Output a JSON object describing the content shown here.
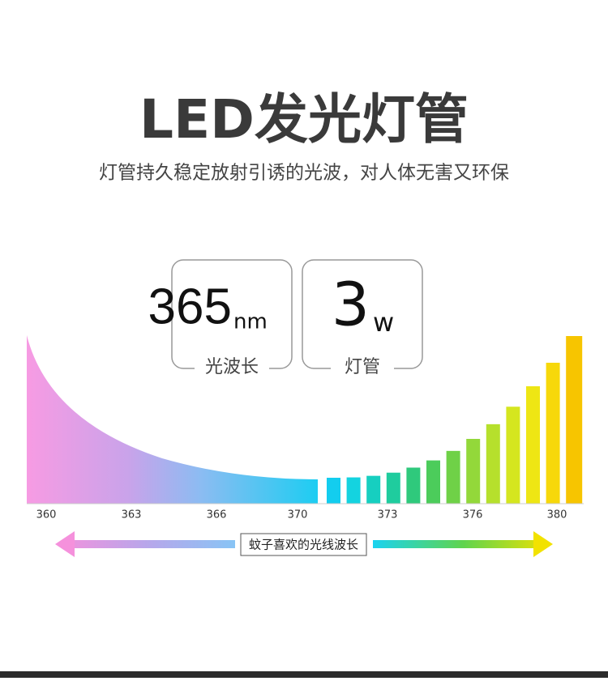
{
  "header": {
    "title": "LED发光灯管",
    "subtitle": "灯管持久稳定放射引诱的光波，对人体无害又环保"
  },
  "cards": [
    {
      "number": "365",
      "unit": "nm",
      "label": "光波长"
    },
    {
      "number": "3",
      "unit": "w",
      "label": "灯管"
    }
  ],
  "spectrum": {
    "ticks": [
      "360",
      "363",
      "366",
      "370",
      "373",
      "376",
      "380"
    ],
    "caption": "蚊子喜欢的光线波长"
  }
}
